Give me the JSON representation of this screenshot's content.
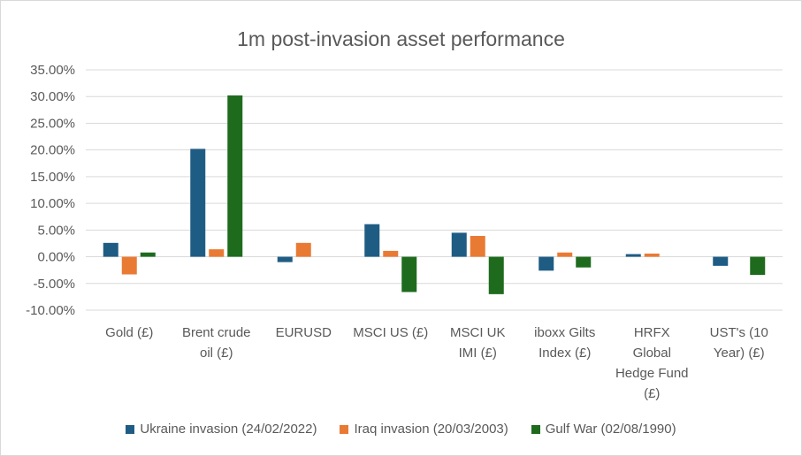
{
  "chart_data": {
    "type": "bar",
    "title": "1m post-invasion asset performance",
    "categories": [
      [
        "Gold (£)"
      ],
      [
        "Brent crude",
        "oil (£)"
      ],
      [
        "EURUSD"
      ],
      [
        "MSCI US (£)"
      ],
      [
        "MSCI UK",
        "IMI (£)"
      ],
      [
        "iboxx Gilts",
        "Index (£)"
      ],
      [
        "HRFX",
        "Global",
        "Hedge Fund",
        "(£)"
      ],
      [
        "UST's (10",
        "Year) (£)"
      ]
    ],
    "series": [
      {
        "name": "Ukraine invasion (24/02/2022)",
        "color": "#1f5c84",
        "values": [
          2.6,
          20.2,
          -1.0,
          6.1,
          4.5,
          -2.6,
          0.5,
          -1.7
        ]
      },
      {
        "name": "Iraq invasion (20/03/2003)",
        "color": "#e97a34",
        "values": [
          -3.3,
          1.4,
          2.6,
          1.1,
          3.9,
          0.8,
          0.6,
          0.0
        ]
      },
      {
        "name": "Gulf War (02/08/1990)",
        "color": "#1e6b1e",
        "values": [
          0.8,
          30.2,
          0.0,
          -6.6,
          -7.0,
          -2.0,
          0.0,
          -3.4
        ]
      }
    ],
    "yticks": [
      "35.00%",
      "30.00%",
      "25.00%",
      "20.00%",
      "15.00%",
      "10.00%",
      "5.00%",
      "0.00%",
      "-5.00%",
      "-10.00%"
    ],
    "ylim": [
      -10,
      35
    ],
    "grid": true,
    "legend_position": "bottom"
  }
}
